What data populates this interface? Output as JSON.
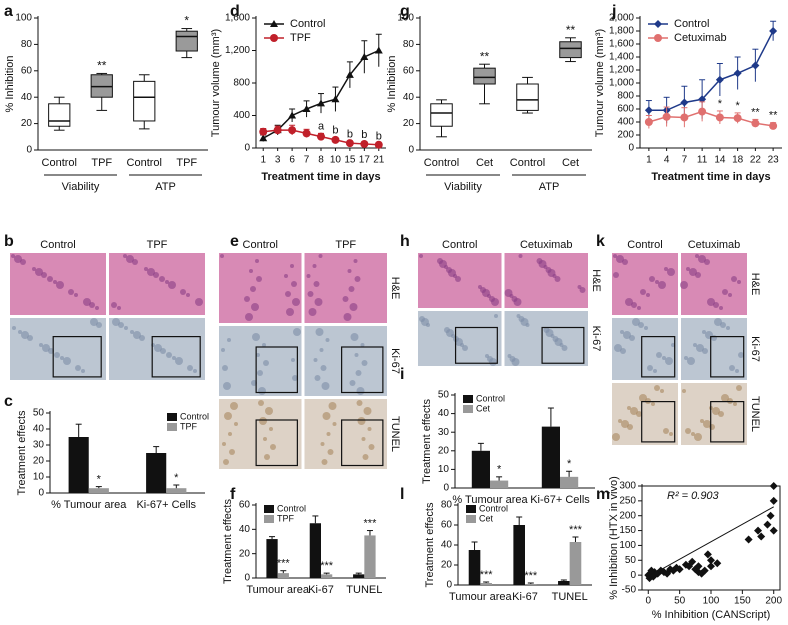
{
  "chart_data": [
    {
      "panel": "a",
      "type": "box",
      "ylabel": "% Inhibition",
      "ylim": [
        0,
        100
      ],
      "yticks": [
        0,
        20,
        40,
        60,
        80,
        100
      ],
      "categories": [
        "Control",
        "TPF",
        "Control",
        "TPF"
      ],
      "groups": [
        "Viability",
        "ATP"
      ],
      "boxes": [
        {
          "min": 15,
          "q1": 18,
          "median": 22,
          "q3": 35,
          "max": 40,
          "color": "#ffffff"
        },
        {
          "min": 30,
          "q1": 40,
          "median": 48,
          "q3": 57,
          "max": 58,
          "color": "#9a9a9a",
          "annotation": "**"
        },
        {
          "min": 16,
          "q1": 22,
          "median": 40,
          "q3": 52,
          "max": 57,
          "color": "#ffffff"
        },
        {
          "min": 70,
          "q1": 75,
          "median": 86,
          "q3": 90,
          "max": 92,
          "color": "#9a9a9a",
          "annotation": "*"
        }
      ]
    },
    {
      "panel": "d",
      "type": "line",
      "ylabel": "Tumour volume (mm³)",
      "xlabel": "Treatment time in days",
      "ylim": [
        0,
        1600
      ],
      "yticks": [
        0,
        400,
        800,
        {
          "value": 1200,
          "label": "1,200"
        },
        {
          "value": 1600,
          "label": "1,600"
        }
      ],
      "categories": [
        "1",
        "3",
        "6",
        "7",
        "8",
        "10",
        "15",
        "17",
        "21"
      ],
      "legend": "upper left",
      "series": [
        {
          "name": "Control",
          "color": "#111111",
          "marker": "triangle",
          "values": [
            120,
            220,
            400,
            480,
            550,
            600,
            900,
            1120,
            1200
          ],
          "errors": [
            40,
            60,
            80,
            100,
            120,
            150,
            160,
            200,
            200
          ]
        },
        {
          "name": "TPF",
          "color": "#c0202a",
          "marker": "circle",
          "values": [
            200,
            220,
            220,
            180,
            140,
            100,
            60,
            50,
            40
          ],
          "errors": [
            40,
            50,
            60,
            50,
            40,
            30,
            20,
            20,
            15
          ],
          "annotations": [
            null,
            null,
            null,
            null,
            "a",
            "b",
            "b",
            "b",
            "b"
          ]
        }
      ]
    },
    {
      "panel": "g",
      "type": "box",
      "ylabel": "% Inhibition",
      "ylim": [
        0,
        100
      ],
      "yticks": [
        0,
        20,
        40,
        60,
        80,
        100
      ],
      "categories": [
        "Control",
        "Cet",
        "Control",
        "Cet"
      ],
      "groups": [
        "Viability",
        "ATP"
      ],
      "boxes": [
        {
          "min": 10,
          "q1": 18,
          "median": 28,
          "q3": 35,
          "max": 38,
          "color": "#ffffff"
        },
        {
          "min": 35,
          "q1": 50,
          "median": 55,
          "q3": 62,
          "max": 65,
          "color": "#9a9a9a",
          "annotation": "**"
        },
        {
          "min": 28,
          "q1": 30,
          "median": 38,
          "q3": 50,
          "max": 55,
          "color": "#ffffff"
        },
        {
          "min": 67,
          "q1": 70,
          "median": 77,
          "q3": 82,
          "max": 85,
          "color": "#9a9a9a",
          "annotation": "**"
        }
      ]
    },
    {
      "panel": "j",
      "type": "line",
      "ylabel": "Tumour volume (mm³)",
      "xlabel": "Treatment time in days",
      "ylim": [
        0,
        2000
      ],
      "yticks": [
        0,
        200,
        400,
        600,
        800,
        {
          "value": 1000,
          "label": "1,000"
        },
        {
          "value": 1200,
          "label": "1,200"
        },
        {
          "value": 1400,
          "label": "1,400"
        },
        {
          "value": 1600,
          "label": "1,600"
        },
        {
          "value": 1800,
          "label": "1,800"
        },
        {
          "value": 2000,
          "label": "2,000"
        }
      ],
      "categories": [
        "1",
        "4",
        "7",
        "11",
        "14",
        "18",
        "22",
        "23"
      ],
      "legend": "upper left",
      "series": [
        {
          "name": "Control",
          "color": "#1f3a8a",
          "marker": "diamond",
          "values": [
            580,
            580,
            700,
            750,
            1050,
            1150,
            1270,
            1800
          ],
          "errors": [
            150,
            200,
            250,
            300,
            250,
            250,
            250,
            150
          ]
        },
        {
          "name": "Cetuximab",
          "color": "#e0706f",
          "marker": "circle",
          "values": [
            400,
            480,
            470,
            560,
            470,
            460,
            380,
            340
          ],
          "errors": [
            100,
            150,
            150,
            150,
            100,
            80,
            60,
            50
          ],
          "annotations": [
            null,
            null,
            null,
            null,
            "*",
            "*",
            "**",
            "**"
          ]
        }
      ]
    },
    {
      "panel": "c",
      "type": "bar",
      "ylabel": "Treatment effects",
      "ylim": [
        0,
        50
      ],
      "yticks": [
        0,
        10,
        20,
        30,
        40,
        50
      ],
      "categories": [
        "% Tumour area",
        "Ki-67+ Cells"
      ],
      "legend": "upper right",
      "series": [
        {
          "name": "Control",
          "color": "#111111",
          "values": [
            35,
            25
          ],
          "errors": [
            8,
            4
          ]
        },
        {
          "name": "TPF",
          "color": "#999999",
          "values": [
            3,
            3
          ],
          "errors": [
            1,
            2
          ],
          "annotations": [
            "*",
            "*"
          ]
        }
      ]
    },
    {
      "panel": "f",
      "type": "bar",
      "ylabel": "Treatment effects",
      "ylim": [
        0,
        60
      ],
      "yticks": [
        0,
        20,
        40,
        60
      ],
      "categories": [
        "Tumour area",
        "Ki-67",
        "TUNEL"
      ],
      "legend": "upper left",
      "series": [
        {
          "name": "Control",
          "color": "#111111",
          "values": [
            32,
            45,
            3
          ],
          "errors": [
            2,
            6,
            1
          ]
        },
        {
          "name": "TPF",
          "color": "#999999",
          "values": [
            4,
            3,
            35
          ],
          "errors": [
            2,
            1,
            4
          ],
          "annotations": [
            "***",
            "***",
            "***"
          ]
        }
      ]
    },
    {
      "panel": "i",
      "type": "bar",
      "ylabel": "Treatment effects",
      "ylim": [
        0,
        50
      ],
      "yticks": [
        0,
        10,
        20,
        30,
        40,
        50
      ],
      "categories": [
        "% Tumour area",
        "Ki-67+ Cells"
      ],
      "legend": "upper left",
      "series": [
        {
          "name": "Control",
          "color": "#111111",
          "values": [
            20,
            33
          ],
          "errors": [
            4,
            10
          ]
        },
        {
          "name": "Cet",
          "color": "#999999",
          "values": [
            4,
            6
          ],
          "errors": [
            2,
            3
          ],
          "annotations": [
            "*",
            "*"
          ]
        }
      ]
    },
    {
      "panel": "l",
      "type": "bar",
      "ylabel": "Treatment effects",
      "ylim": [
        0,
        80
      ],
      "yticks": [
        0,
        20,
        40,
        60,
        80
      ],
      "categories": [
        "Tumour area",
        "Ki-67",
        "TUNEL"
      ],
      "legend": "upper left",
      "series": [
        {
          "name": "Control",
          "color": "#111111",
          "values": [
            35,
            60,
            4
          ],
          "errors": [
            8,
            8,
            1
          ]
        },
        {
          "name": "Cet",
          "color": "#999999",
          "values": [
            2,
            1,
            43
          ],
          "errors": [
            1,
            1,
            5
          ],
          "annotations": [
            "***",
            "***",
            "***"
          ]
        }
      ]
    },
    {
      "panel": "m",
      "type": "scatter",
      "ylabel": "% Inhibition (HTX in vivo)",
      "xlabel": "% Inhibition (CANScript)",
      "annotation": "R² = 0.903",
      "color": "#111111",
      "xlim": [
        -10,
        210
      ],
      "xticks": [
        0,
        50,
        100,
        150,
        200
      ],
      "ylim": [
        -50,
        300
      ],
      "yticks": [
        -50,
        0,
        50,
        100,
        150,
        200,
        250,
        300
      ],
      "x": [
        0,
        2,
        5,
        5,
        8,
        10,
        10,
        15,
        20,
        25,
        30,
        35,
        40,
        45,
        50,
        60,
        65,
        70,
        75,
        80,
        80,
        85,
        90,
        95,
        100,
        100,
        110,
        160,
        175,
        180,
        190,
        195,
        200,
        200,
        200
      ],
      "values": [
        0,
        -10,
        5,
        15,
        -5,
        10,
        0,
        5,
        15,
        10,
        5,
        20,
        15,
        25,
        20,
        35,
        30,
        45,
        20,
        30,
        10,
        5,
        15,
        70,
        50,
        30,
        40,
        120,
        150,
        130,
        170,
        200,
        300,
        250,
        150
      ],
      "trendline": {
        "x": [
          0,
          200
        ],
        "y": [
          -5,
          230
        ]
      }
    }
  ],
  "image_panels": [
    {
      "panel": "b",
      "columns": [
        "Control",
        "TPF"
      ]
    },
    {
      "panel": "e",
      "columns": [
        "Control",
        "TPF"
      ],
      "rows": [
        "H&E",
        "Ki-67",
        "TUNEL"
      ]
    },
    {
      "panel": "h",
      "columns": [
        "Control",
        "Cetuximab"
      ],
      "rows": [
        "H&E",
        "Ki-67"
      ]
    },
    {
      "panel": "k",
      "columns": [
        "Control",
        "Cetuximab"
      ],
      "rows": [
        "H&E",
        "Ki-67",
        "TUNEL"
      ]
    }
  ]
}
